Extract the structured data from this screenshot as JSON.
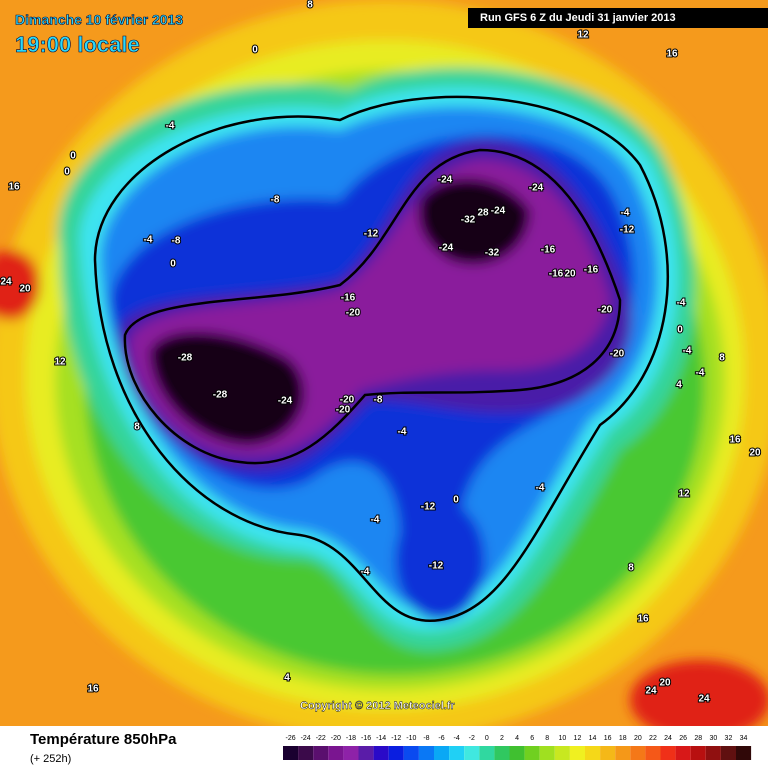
{
  "header": {
    "date": "Dimanche 10 février 2013",
    "time": "19:00 locale",
    "run": "Run GFS 6 Z du Jeudi 31 janvier 2013"
  },
  "footer": {
    "title": "Température 850hPa",
    "lead": "(+ 252h)",
    "copyright": "Copyright © 2012 Meteociel.fr"
  },
  "legend": {
    "labels": [
      "-26",
      "-24",
      "-22",
      "-20",
      "-18",
      "-16",
      "-14",
      "-12",
      "-10",
      "-8",
      "-6",
      "-4",
      "-2",
      "0",
      "2",
      "4",
      "6",
      "8",
      "10",
      "12",
      "14",
      "16",
      "18",
      "20",
      "22",
      "24",
      "26",
      "28",
      "30",
      "32",
      "34"
    ],
    "colors": [
      "#1a0030",
      "#3b0a4a",
      "#5a0f6e",
      "#7a1590",
      "#8e22a8",
      "#5a1ca8",
      "#2a0ac8",
      "#0a1ee0",
      "#0a4af0",
      "#0a78f5",
      "#0aa8f5",
      "#20d0f5",
      "#40e8e0",
      "#30d8a0",
      "#30c860",
      "#40c030",
      "#70d020",
      "#a0e020",
      "#c8e820",
      "#f0f020",
      "#f5d818",
      "#f5b818",
      "#f59818",
      "#f57818",
      "#f55818",
      "#f03018",
      "#d81818",
      "#b81010",
      "#901010",
      "#601010",
      "#300808"
    ]
  },
  "contour_labels": [
    "-28",
    "-28",
    "-24",
    "-20",
    "-20",
    "-8",
    "-32",
    "28",
    "-24",
    "-24",
    "-24",
    "-24",
    "-32",
    "-16",
    "-16",
    "20",
    "-16",
    "-20",
    "-20",
    "-16",
    "-20",
    "-12",
    "-8",
    "-4",
    "-8",
    "0",
    "-4",
    "0",
    "8",
    "12",
    "16",
    "16",
    "24",
    "20",
    "0",
    "0",
    "-4",
    "-12",
    "-4",
    "0",
    "-4",
    "-4",
    "4",
    "8",
    "16",
    "20",
    "12",
    "8",
    "16",
    "-4",
    "0",
    "-4",
    "-12",
    "-4",
    "-4",
    "-12",
    "4",
    "16",
    "24",
    "20",
    "24",
    "12",
    "8"
  ]
}
